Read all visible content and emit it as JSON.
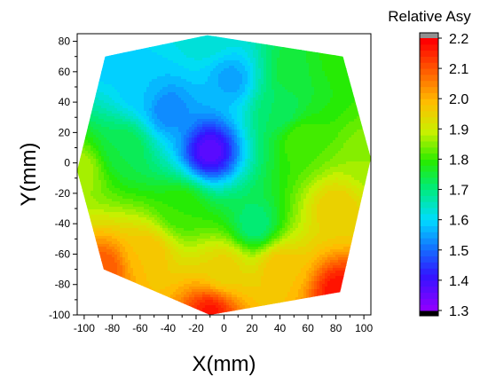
{
  "chart_data": {
    "type": "heatmap",
    "subtype": "filled-contour",
    "xlabel": "X(mm)",
    "ylabel": "Y(mm)",
    "xlim": [
      -105,
      105
    ],
    "ylim": [
      -100,
      85
    ],
    "xticks": [
      -100,
      -80,
      -60,
      -40,
      -20,
      0,
      20,
      40,
      60,
      80,
      100
    ],
    "yticks": [
      -100,
      -80,
      -60,
      -40,
      -20,
      0,
      20,
      40,
      60,
      80
    ],
    "colorbar": {
      "title": "Relative Asy",
      "min": 1.3,
      "max": 2.2,
      "ticks": [
        1.3,
        1.4,
        1.5,
        1.6,
        1.7,
        1.8,
        1.9,
        2.0,
        2.1,
        2.2
      ],
      "tick_labels": [
        "1.3",
        "1.4",
        "1.5",
        "1.6",
        "1.7",
        "1.8",
        "1.9",
        "2.0",
        "2.1",
        "2.2"
      ],
      "levels": 45,
      "below_color": "#000000",
      "above_color": "#909090"
    },
    "boundary": [
      [
        -12,
        84
      ],
      [
        85,
        70
      ],
      [
        105,
        3
      ],
      [
        83,
        -85
      ],
      [
        -10,
        -100
      ],
      [
        -86,
        -70
      ],
      [
        -105,
        -5
      ],
      [
        -85,
        70
      ]
    ],
    "samples": [
      {
        "x": -12,
        "y": 84,
        "v": 1.64
      },
      {
        "x": 85,
        "y": 70,
        "v": 1.8
      },
      {
        "x": 105,
        "y": 3,
        "v": 1.86
      },
      {
        "x": 83,
        "y": -85,
        "v": 2.18
      },
      {
        "x": -10,
        "y": -100,
        "v": 2.17
      },
      {
        "x": -86,
        "y": -70,
        "v": 2.1
      },
      {
        "x": -105,
        "y": -5,
        "v": 1.88
      },
      {
        "x": -85,
        "y": 70,
        "v": 1.58
      },
      {
        "x": -10,
        "y": 8,
        "v": 1.36
      },
      {
        "x": -40,
        "y": 35,
        "v": 1.52
      },
      {
        "x": 5,
        "y": 55,
        "v": 1.55
      },
      {
        "x": 50,
        "y": 60,
        "v": 1.76
      },
      {
        "x": 55,
        "y": 15,
        "v": 1.82
      },
      {
        "x": 22,
        "y": -40,
        "v": 1.7
      },
      {
        "x": -30,
        "y": -30,
        "v": 1.8
      },
      {
        "x": -70,
        "y": 10,
        "v": 1.74
      },
      {
        "x": -55,
        "y": -60,
        "v": 1.98
      },
      {
        "x": 40,
        "y": -70,
        "v": 1.98
      },
      {
        "x": 80,
        "y": -30,
        "v": 1.96
      },
      {
        "x": 40,
        "y": 35,
        "v": 1.72
      },
      {
        "x": -60,
        "y": 50,
        "v": 1.58
      },
      {
        "x": 0,
        "y": -70,
        "v": 1.95
      }
    ]
  }
}
